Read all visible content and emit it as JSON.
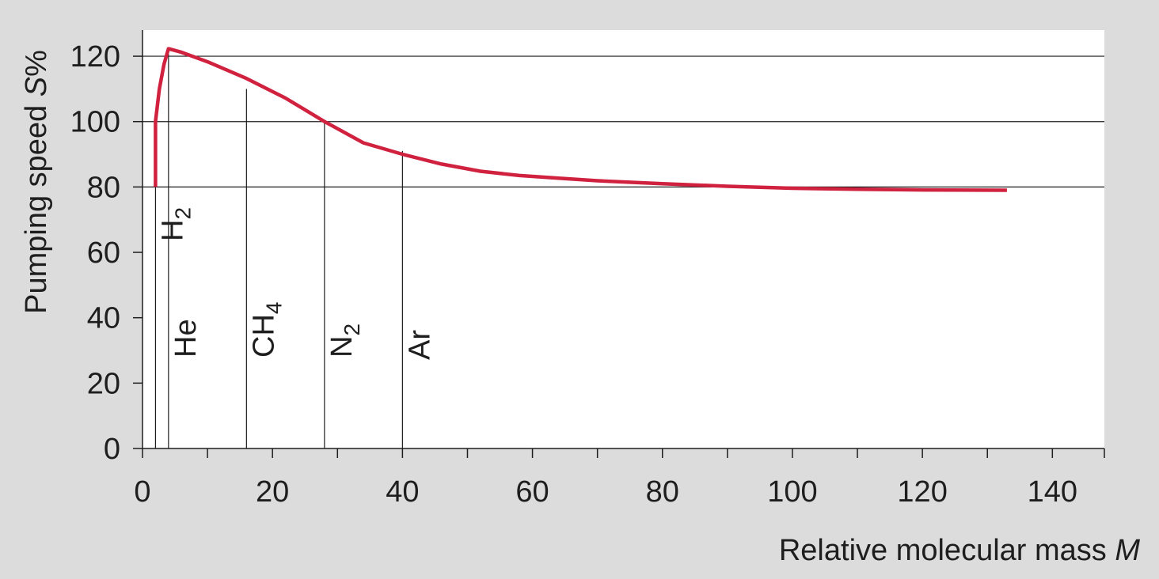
{
  "colors": {
    "background": "#dcdcdd",
    "plot_area": "#ffffff",
    "axis": "#1e1e1e",
    "gridline": "#1e1e1e",
    "curve": "#d0213f"
  },
  "chart_data": {
    "type": "line",
    "title": "",
    "ylabel": {
      "main": "Pumping speed ",
      "var": "S",
      "unit": "%"
    },
    "xlabel": {
      "main": "Relative molecular mass ",
      "var": "M"
    },
    "xlim": [
      0,
      148
    ],
    "ylim": [
      0,
      128
    ],
    "xticks": [
      0,
      20,
      40,
      60,
      80,
      100,
      120,
      140
    ],
    "xticks_minor": [
      10,
      30,
      50,
      70,
      90,
      110,
      130,
      148
    ],
    "yticks": [
      0,
      20,
      40,
      60,
      80,
      100,
      120
    ],
    "grid_y": [
      80,
      100,
      120
    ],
    "series": [
      {
        "points": [
          [
            2,
            80
          ],
          [
            2,
            100
          ],
          [
            2.6,
            110
          ],
          [
            3.3,
            117.5
          ],
          [
            4,
            122.3
          ],
          [
            6,
            121.2
          ],
          [
            10,
            118.3
          ],
          [
            16,
            113.2
          ],
          [
            22,
            107.2
          ],
          [
            28,
            100
          ],
          [
            34,
            93.5
          ],
          [
            40,
            90
          ],
          [
            46,
            87
          ],
          [
            52,
            84.8
          ],
          [
            58,
            83.5
          ],
          [
            64,
            82.7
          ],
          [
            70,
            81.9
          ],
          [
            80,
            81
          ],
          [
            90,
            80.2
          ],
          [
            100,
            79.6
          ],
          [
            110,
            79.3
          ],
          [
            120,
            79.1
          ],
          [
            133,
            79
          ]
        ]
      }
    ],
    "gases": [
      {
        "label": "H",
        "sub": "2",
        "x": 2,
        "line_to": 100
      },
      {
        "label": "He",
        "sub": "",
        "x": 4,
        "line_to": 122.3
      },
      {
        "label": "CH",
        "sub": "4",
        "x": 16,
        "line_to": 110
      },
      {
        "label": "N",
        "sub": "2",
        "x": 28,
        "line_to": 100
      },
      {
        "label": "Ar",
        "sub": "",
        "x": 40,
        "line_to": 91
      }
    ]
  }
}
